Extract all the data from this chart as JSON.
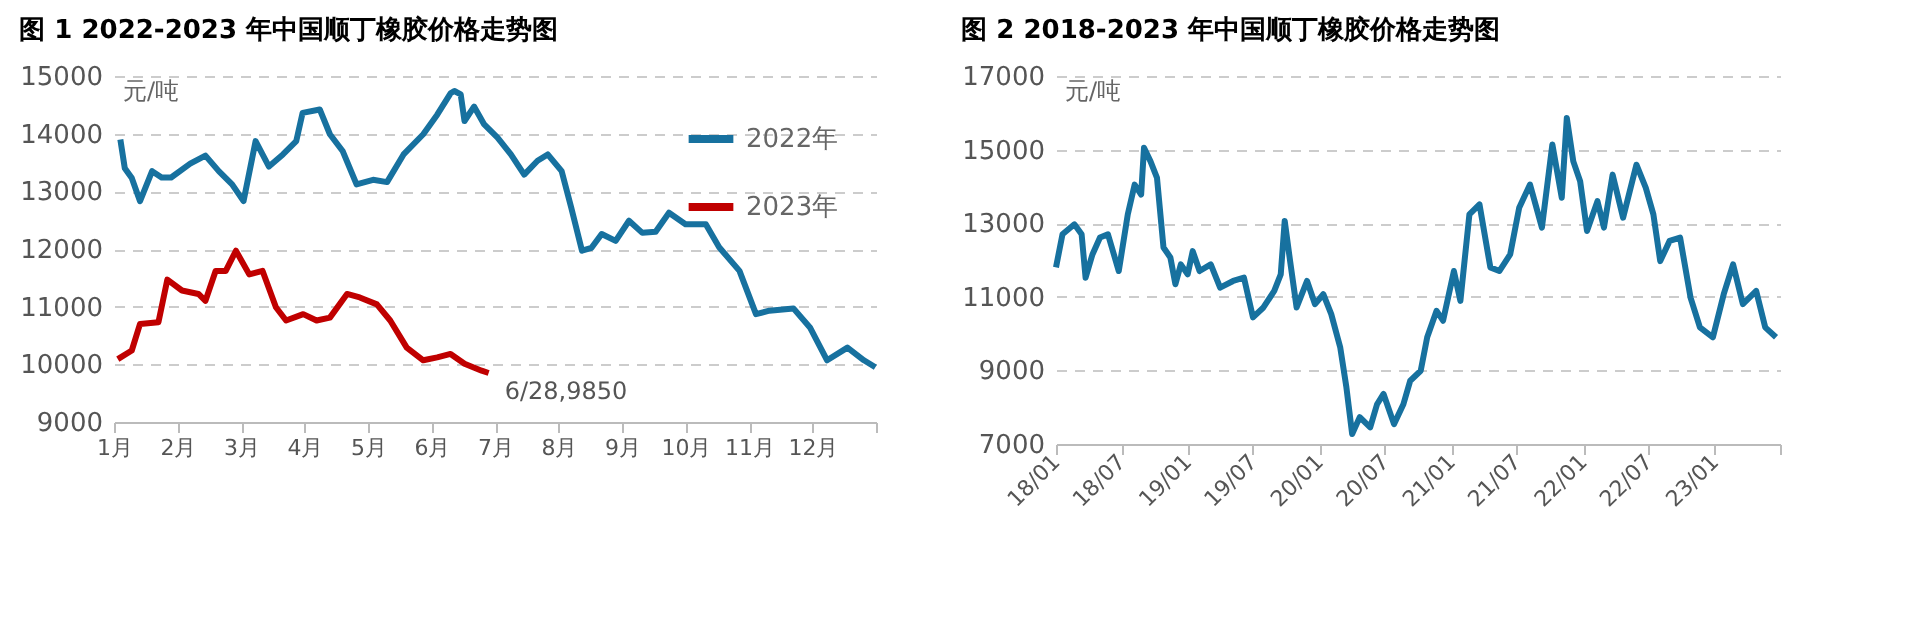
{
  "chart_data": [
    {
      "type": "line",
      "title": "图 1 2022-2023 年中国顺丁橡胶价格走势图",
      "ylabel": "元/吨",
      "xlim": [
        1,
        13
      ],
      "ylim": [
        9000,
        15000
      ],
      "yticks": [
        9000,
        10000,
        11000,
        12000,
        13000,
        14000,
        15000
      ],
      "xticks": [
        {
          "value": 1,
          "label": "1月"
        },
        {
          "value": 2,
          "label": "2月"
        },
        {
          "value": 3,
          "label": "3月"
        },
        {
          "value": 4,
          "label": "4月"
        },
        {
          "value": 5,
          "label": "5月"
        },
        {
          "value": 6,
          "label": "6月"
        },
        {
          "value": 7,
          "label": "7月"
        },
        {
          "value": 8,
          "label": "8月"
        },
        {
          "value": 9,
          "label": "9月"
        },
        {
          "value": 10,
          "label": "10月"
        },
        {
          "value": 11,
          "label": "11月"
        },
        {
          "value": 12,
          "label": "12月"
        },
        {
          "value": 13,
          "label": null
        }
      ],
      "grid": "y",
      "legend": "top right",
      "annotations": [
        {
          "text": "6/28,9850",
          "x": 6.9,
          "y": 9850
        }
      ],
      "series": [
        {
          "name": "2022年",
          "color": "#17719f",
          "x": [
            1.1,
            1.17,
            1.28,
            1.41,
            1.6,
            1.75,
            1.9,
            2.2,
            2.44,
            2.65,
            2.86,
            3.04,
            3.23,
            3.44,
            3.66,
            3.87,
            3.97,
            4.24,
            4.4,
            4.6,
            4.82,
            5.08,
            5.3,
            5.56,
            5.87,
            6.09,
            6.3,
            6.36,
            6.46,
            6.52,
            6.67,
            6.83,
            7.04,
            7.25,
            7.46,
            7.67,
            7.83,
            8.05,
            8.2,
            8.37,
            8.52,
            8.68,
            8.9,
            9.11,
            9.32,
            9.53,
            9.74,
            10.0,
            10.32,
            10.53,
            10.85,
            11.11,
            11.32,
            11.7,
            11.96,
            12.23,
            12.55,
            12.81,
            12.99
          ],
          "values": [
            13900,
            13400,
            13230,
            12830,
            13350,
            13240,
            13240,
            13480,
            13620,
            13350,
            13120,
            12830,
            13870,
            13430,
            13640,
            13870,
            14360,
            14420,
            13990,
            13700,
            13120,
            13200,
            13160,
            13640,
            13990,
            14330,
            14700,
            14740,
            14680,
            14220,
            14470,
            14160,
            13930,
            13640,
            13290,
            13530,
            13640,
            13350,
            12720,
            11970,
            12020,
            12260,
            12140,
            12490,
            12280,
            12300,
            12630,
            12430,
            12430,
            12030,
            11620,
            10870,
            10930,
            10970,
            10640,
            10070,
            10290,
            10070,
            9950
          ]
        },
        {
          "name": "2023年",
          "color": "#c00000",
          "x": [
            1.06,
            1.28,
            1.41,
            1.7,
            1.84,
            2.07,
            2.33,
            2.44,
            2.6,
            2.76,
            2.92,
            3.13,
            3.34,
            3.55,
            3.71,
            3.98,
            4.19,
            4.4,
            4.67,
            4.87,
            5.14,
            5.35,
            5.61,
            5.87,
            6.09,
            6.3,
            6.52,
            6.79,
            6.9
          ],
          "values": [
            10090,
            10240,
            10700,
            10730,
            11470,
            11280,
            11220,
            11100,
            11620,
            11620,
            11970,
            11560,
            11620,
            10990,
            10760,
            10870,
            10760,
            10810,
            11220,
            11160,
            11040,
            10760,
            10290,
            10070,
            10120,
            10180,
            10010,
            9890,
            9850
          ]
        }
      ]
    },
    {
      "type": "line",
      "title": "图 2 2018-2023 年中国顺丁橡胶价格走势图",
      "ylabel": "元/吨",
      "xlim": [
        "2018-01",
        "2023-07"
      ],
      "ylim": [
        7000,
        17000
      ],
      "yticks": [
        7000,
        9000,
        11000,
        13000,
        15000,
        17000
      ],
      "xticks": [
        {
          "value": "2018-01",
          "label": "18/01"
        },
        {
          "value": "2018-07",
          "label": "18/07"
        },
        {
          "value": "2019-01",
          "label": "19/01"
        },
        {
          "value": "2019-07",
          "label": "19/07"
        },
        {
          "value": "2020-01",
          "label": "20/01"
        },
        {
          "value": "2020-07",
          "label": "20/07"
        },
        {
          "value": "2021-01",
          "label": "21/01"
        },
        {
          "value": "2021-07",
          "label": "21/07"
        },
        {
          "value": "2022-01",
          "label": "22/01"
        },
        {
          "value": "2022-07",
          "label": "22/07"
        },
        {
          "value": "2023-01",
          "label": "23/01"
        },
        {
          "value": "2023-07",
          "label": null
        }
      ],
      "grid": "y",
      "series": [
        {
          "color": "#17719f",
          "x": [
            "2018-01-01",
            "2018-01-19",
            "2018-02-21",
            "2018-03-13",
            "2018-03-24",
            "2018-04-12",
            "2018-05-03",
            "2018-05-25",
            "2018-06-24",
            "2018-07-19",
            "2018-08-07",
            "2018-08-25",
            "2018-09-02",
            "2018-09-20",
            "2018-10-08",
            "2018-10-26",
            "2018-11-14",
            "2018-11-28",
            "2018-12-13",
            "2019-01-01",
            "2019-01-15",
            "2019-02-03",
            "2019-03-06",
            "2019-04-01",
            "2019-05-07",
            "2019-06-06",
            "2019-07-01",
            "2019-07-30",
            "2019-08-29",
            "2019-09-16",
            "2019-09-27",
            "2019-10-12",
            "2019-10-30",
            "2019-11-28",
            "2019-12-20",
            "2020-01-12",
            "2020-02-03",
            "2020-02-28",
            "2020-03-16",
            "2020-04-01",
            "2020-04-22",
            "2020-05-21",
            "2020-06-09",
            "2020-06-27",
            "2020-07-26",
            "2020-08-21",
            "2020-09-09",
            "2020-10-08",
            "2020-10-26",
            "2020-11-21",
            "2020-12-09",
            "2021-01-08",
            "2021-01-26",
            "2021-02-20",
            "2021-03-20",
            "2021-04-19",
            "2021-05-14",
            "2021-06-13",
            "2021-07-08",
            "2021-08-07",
            "2021-09-09",
            "2021-10-08",
            "2021-11-03",
            "2021-11-17",
            "2021-12-05",
            "2021-12-24",
            "2022-01-12",
            "2022-02-10",
            "2022-02-28",
            "2022-03-24",
            "2022-04-22",
            "2022-05-29",
            "2022-06-24",
            "2022-07-15",
            "2022-08-03",
            "2022-08-29",
            "2022-09-27",
            "2022-10-26",
            "2022-11-21",
            "2022-12-27",
            "2023-01-26",
            "2023-02-21",
            "2023-03-20",
            "2023-04-26",
            "2023-05-21",
            "2023-06-20"
          ],
          "values": [
            11800,
            12700,
            12970,
            12700,
            11520,
            12150,
            12610,
            12700,
            11700,
            13240,
            14050,
            13780,
            15050,
            14680,
            14230,
            12340,
            12070,
            11340,
            11880,
            11610,
            12240,
            11700,
            11880,
            11250,
            11430,
            11520,
            10440,
            10710,
            11160,
            11610,
            13060,
            11970,
            10710,
            11430,
            10800,
            11070,
            10530,
            9620,
            8540,
            7270,
            7730,
            7450,
            8080,
            8360,
            7540,
            8080,
            8720,
            8990,
            9900,
            10620,
            10350,
            11700,
            10890,
            13240,
            13510,
            11800,
            11700,
            12150,
            13420,
            14050,
            12880,
            15140,
            13690,
            15860,
            14680,
            14140,
            12790,
            13600,
            12880,
            14320,
            13150,
            14590,
            13960,
            13240,
            11970,
            12520,
            12610,
            10980,
            10170,
            9900,
            11070,
            11880,
            10800,
            11160,
            10170,
            9900
          ]
        }
      ]
    }
  ]
}
